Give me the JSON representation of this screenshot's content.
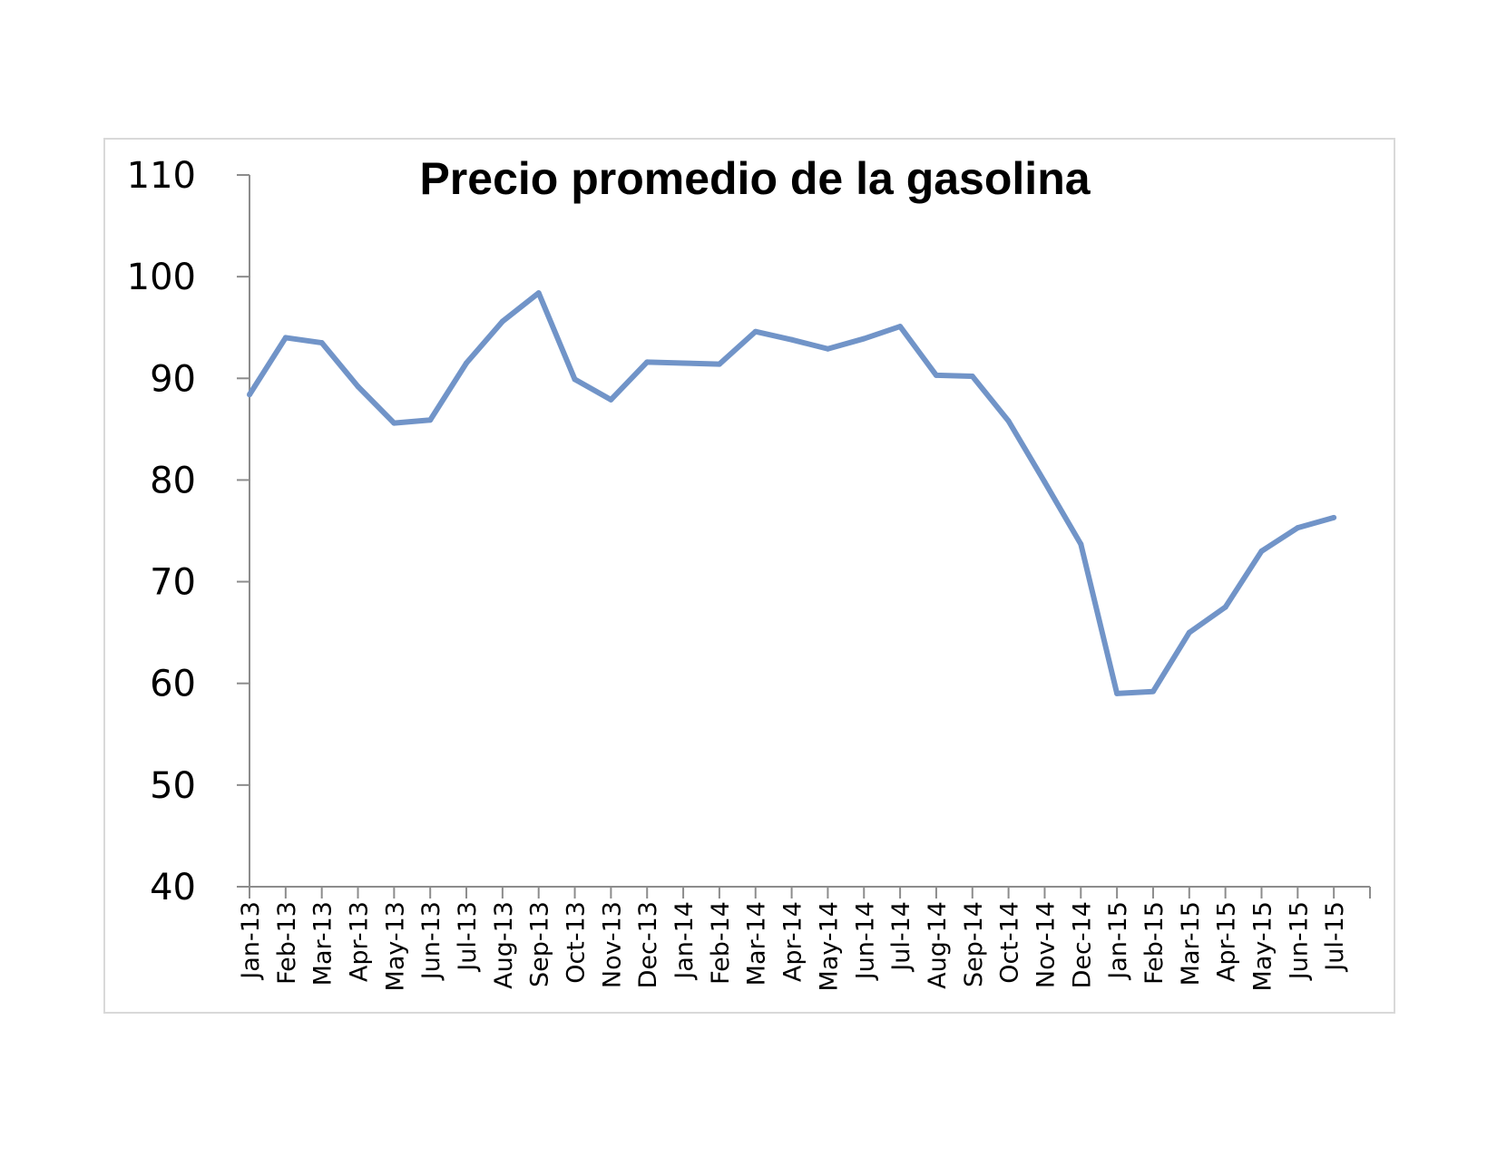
{
  "chart_data": {
    "type": "line",
    "title": "Precio promedio de la gasolina",
    "xlabel": "",
    "ylabel": "",
    "ylim": [
      40,
      110
    ],
    "yticks": [
      "40",
      "50",
      "60",
      "70",
      "80",
      "90",
      "100",
      "110"
    ],
    "grid": false,
    "legend": "none",
    "line_color": "#7194c8",
    "categories": [
      "Jan-13",
      "Feb-13",
      "Mar-13",
      "Apr-13",
      "May-13",
      "Jun-13",
      "Jul-13",
      "Aug-13",
      "Sep-13",
      "Oct-13",
      "Nov-13",
      "Dec-13",
      "Jan-14",
      "Feb-14",
      "Mar-14",
      "Apr-14",
      "May-14",
      "Jun-14",
      "Jul-14",
      "Aug-14",
      "Sep-14",
      "Oct-14",
      "Nov-14",
      "Dec-14",
      "Jan-15",
      "Feb-15",
      "Mar-15",
      "Apr-15",
      "May-15",
      "Jun-15",
      "Jul-15"
    ],
    "values": [
      88.4,
      94.0,
      93.5,
      89.2,
      85.6,
      85.9,
      91.5,
      95.6,
      98.4,
      89.9,
      87.9,
      91.6,
      91.5,
      91.4,
      94.6,
      93.8,
      92.9,
      93.9,
      95.1,
      90.3,
      90.2,
      85.8,
      79.8,
      73.7,
      59.0,
      59.2,
      65.0,
      67.5,
      73.0,
      75.3,
      76.3
    ]
  }
}
